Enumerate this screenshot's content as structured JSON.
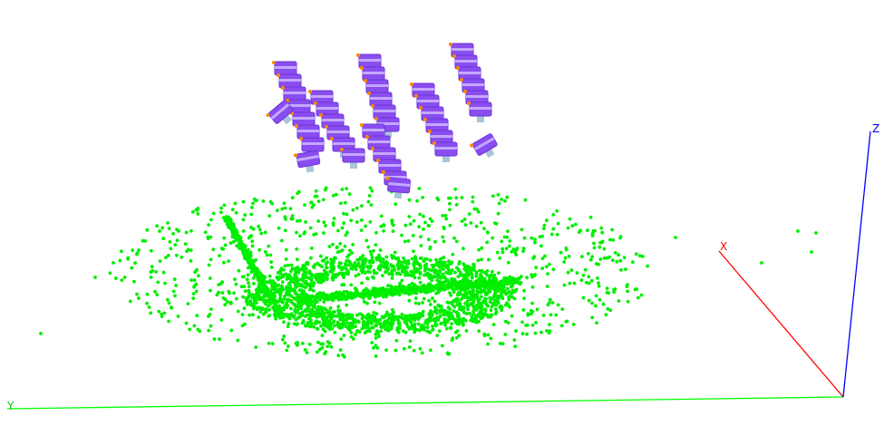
{
  "scene": {
    "background": "#ffffff",
    "axes": {
      "x": {
        "label": "X",
        "color": "#ff0000"
      },
      "y": {
        "label": "Y",
        "color": "#00ff00"
      },
      "z": {
        "label": "Z",
        "color": "#0000ff"
      }
    },
    "point_cloud": {
      "color": "#00ee00"
    },
    "camera_poses": {
      "color": "#8a4df0",
      "marker_color": "#ff8800",
      "lens_color": "#aac4d8"
    }
  }
}
